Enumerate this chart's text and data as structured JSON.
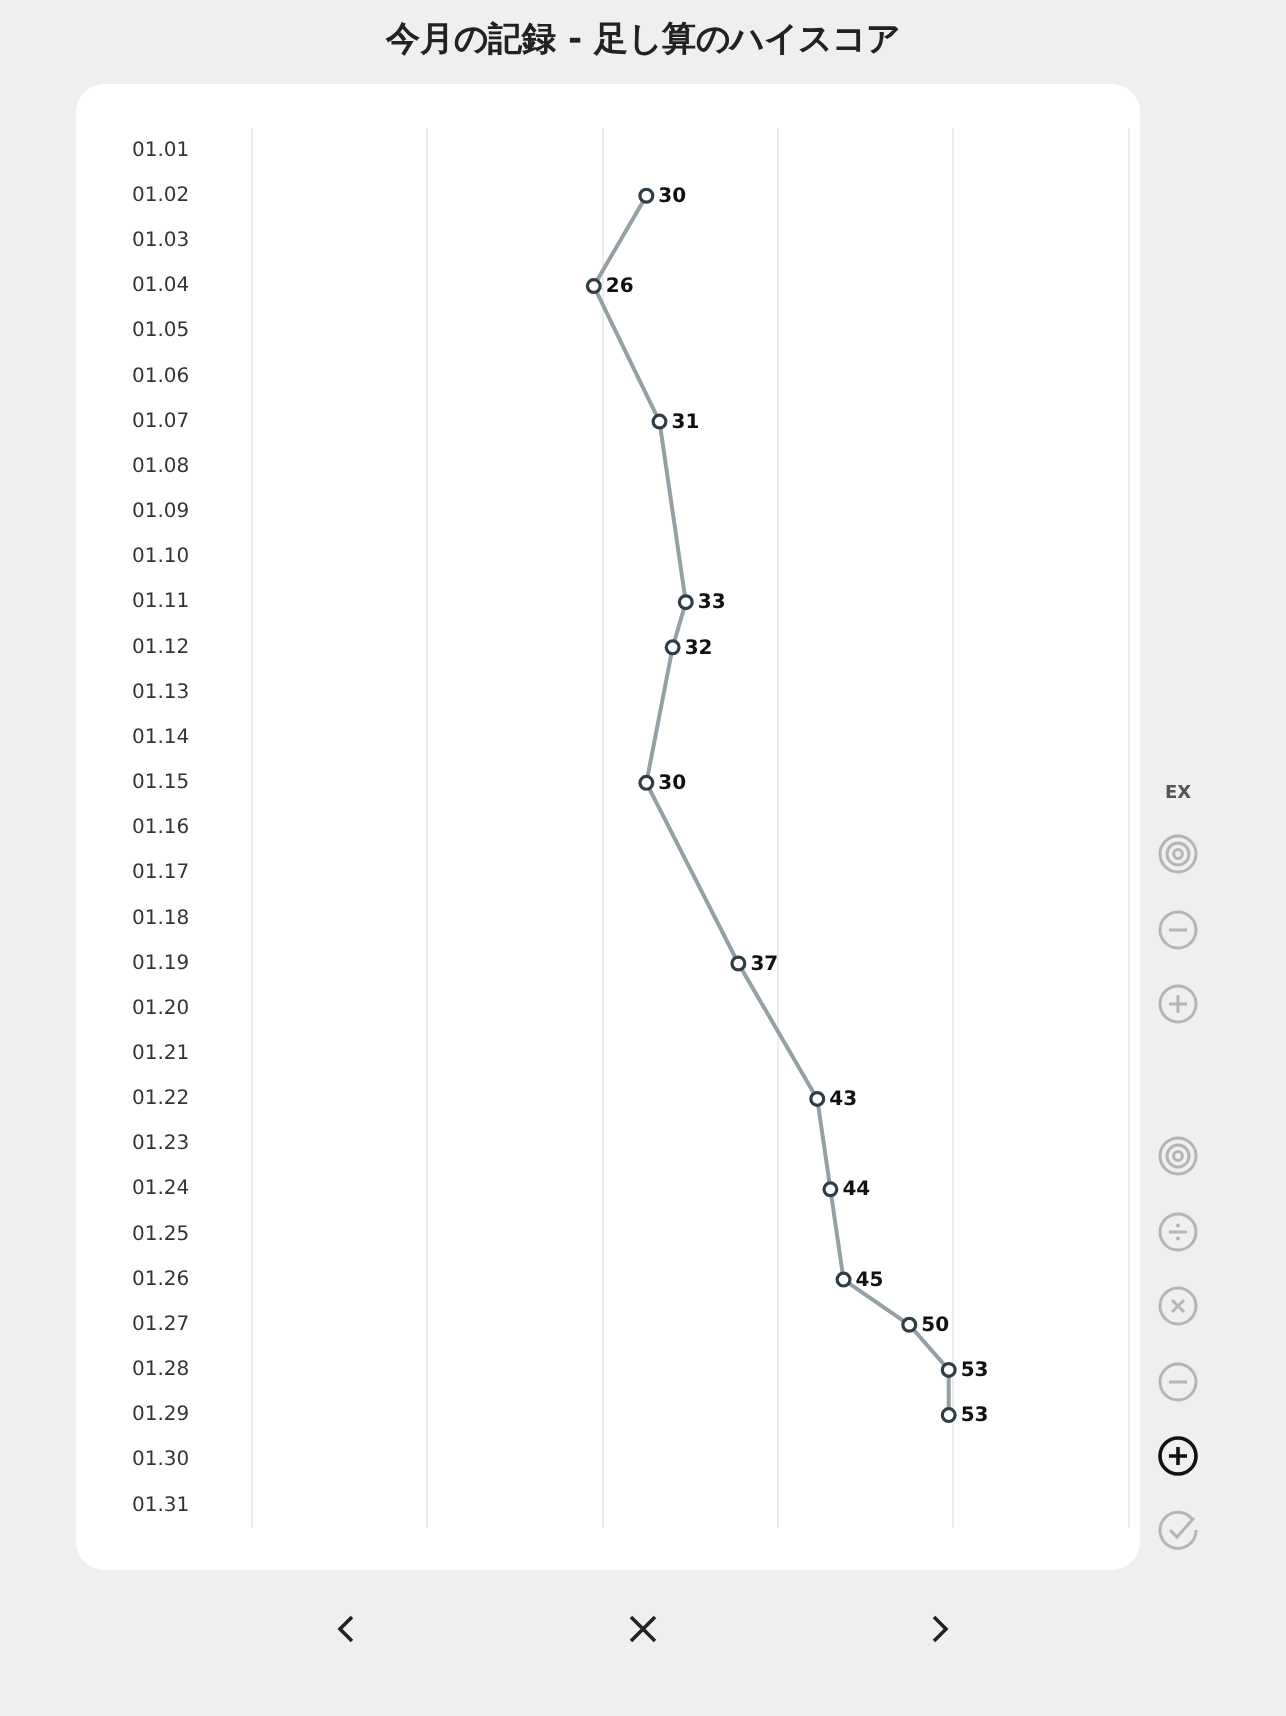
{
  "chart_data": {
    "type": "line",
    "orientation": "horizontal",
    "title": "今月の記録 - 足し算のハイスコア",
    "categories": [
      "01.01",
      "01.02",
      "01.03",
      "01.04",
      "01.05",
      "01.06",
      "01.07",
      "01.08",
      "01.09",
      "01.10",
      "01.11",
      "01.12",
      "01.13",
      "01.14",
      "01.15",
      "01.16",
      "01.17",
      "01.18",
      "01.19",
      "01.20",
      "01.21",
      "01.22",
      "01.23",
      "01.24",
      "01.25",
      "01.26",
      "01.27",
      "01.28",
      "01.29",
      "01.30",
      "01.31"
    ],
    "series": [
      {
        "color": "#95a0a5",
        "values": [
          null,
          30,
          null,
          26,
          null,
          null,
          31,
          null,
          null,
          null,
          33,
          32,
          null,
          null,
          30,
          null,
          null,
          null,
          37,
          null,
          null,
          43,
          null,
          44,
          null,
          45,
          50,
          53,
          53,
          null,
          null
        ]
      }
    ],
    "xlim": [
      0,
      66.7
    ],
    "xticks": [
      {
        "value": 0,
        "label": null
      },
      {
        "value": 13.3,
        "label": null
      },
      {
        "value": 26.7,
        "label": null
      },
      {
        "value": 40,
        "label": null
      },
      {
        "value": 53.3,
        "label": null
      },
      {
        "value": 66.7,
        "label": null
      }
    ],
    "tick_labels": "y",
    "grid": "x",
    "marker": "circle",
    "line_style": "solid",
    "data_labels": true,
    "legend": false,
    "annotations": [
      "EX"
    ]
  }
}
